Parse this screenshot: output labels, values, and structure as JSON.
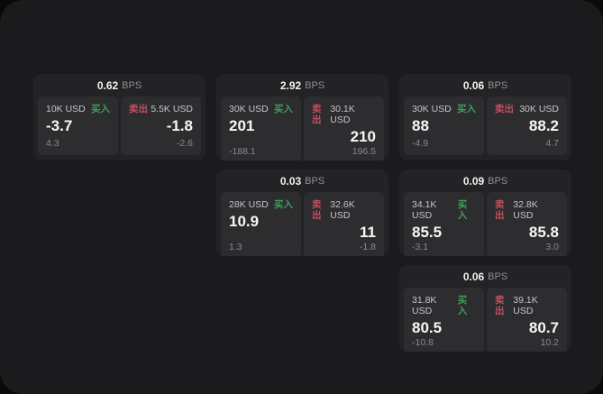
{
  "labels": {
    "bps": "BPS",
    "buy": "买入",
    "sell": "卖出"
  },
  "colors": {
    "page": "#0a0a0a",
    "panel": "#1b1b1d",
    "card": "#232326",
    "tile": "#2d2d30",
    "buy": "#3f9e57",
    "sell": "#c14f60"
  },
  "cards": [
    {
      "bps": "0.62",
      "buy": {
        "amount": "10K USD",
        "value": "-3.7",
        "sub": "4.3"
      },
      "sell": {
        "amount": "5.5K USD",
        "value": "-1.8",
        "sub": "-2.6"
      }
    },
    {
      "bps": "2.92",
      "buy": {
        "amount": "30K USD",
        "value": "201",
        "sub": "-188.1"
      },
      "sell": {
        "amount": "30.1K USD",
        "value": "210",
        "sub": "196.5"
      }
    },
    {
      "bps": "0.06",
      "buy": {
        "amount": "30K USD",
        "value": "88",
        "sub": "-4.9"
      },
      "sell": {
        "amount": "30K USD",
        "value": "88.2",
        "sub": "4.7"
      }
    },
    {
      "bps": "0.03",
      "buy": {
        "amount": "28K USD",
        "value": "10.9",
        "sub": "1.3"
      },
      "sell": {
        "amount": "32.6K USD",
        "value": "11",
        "sub": "-1.8"
      }
    },
    {
      "bps": "0.09",
      "buy": {
        "amount": "34.1K USD",
        "value": "85.5",
        "sub": "-3.1"
      },
      "sell": {
        "amount": "32.8K USD",
        "value": "85.8",
        "sub": "3.0"
      }
    },
    {
      "bps": "0.06",
      "buy": {
        "amount": "31.8K USD",
        "value": "80.5",
        "sub": "-10.8"
      },
      "sell": {
        "amount": "39.1K USD",
        "value": "80.7",
        "sub": "10.2"
      }
    }
  ]
}
